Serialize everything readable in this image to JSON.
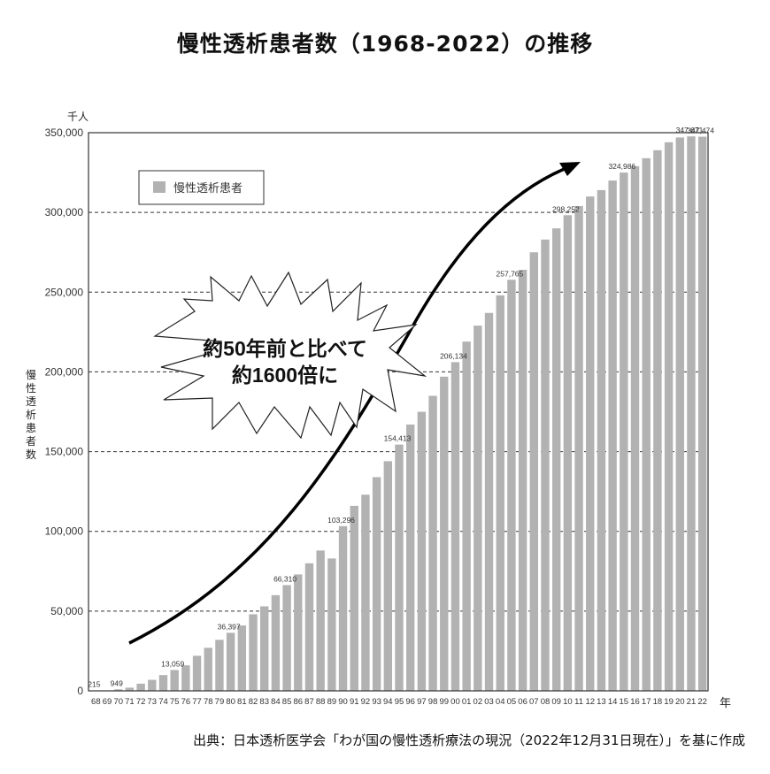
{
  "title": "慢性透析患者数（1968-2022）の推移",
  "y_unit": "千人",
  "y_axis_label": "慢性透析患者数",
  "x_unit": "年",
  "legend": {
    "label": "慢性透析患者"
  },
  "callout": {
    "line1": "約50年前と比べて",
    "line2": "約1600倍に"
  },
  "source": "出典：日本透析医学会「わが国の慢性透析療法の現況（2022年12月31日現在）」を基に作成",
  "colors": {
    "bar": "#b2b2b2",
    "axis": "#333333",
    "grid": "#333333",
    "arrow": "#000000"
  },
  "chart_data": {
    "type": "bar",
    "title": "慢性透析患者数（1968-2022）の推移",
    "xlabel": "年",
    "ylabel": "慢性透析患者数",
    "y_unit": "千人",
    "ylim": [
      0,
      350000
    ],
    "yticks": [
      0,
      50000,
      100000,
      150000,
      200000,
      250000,
      300000,
      350000
    ],
    "ytick_labels": [
      "0",
      "50,000",
      "100,000",
      "150,000",
      "200,000",
      "250,000",
      "300,000",
      "350,000"
    ],
    "grid": "horizontal dashed",
    "legend_position": "upper left inside",
    "categories": [
      "68",
      "69",
      "70",
      "71",
      "72",
      "73",
      "74",
      "75",
      "76",
      "77",
      "78",
      "79",
      "80",
      "81",
      "82",
      "83",
      "84",
      "85",
      "86",
      "87",
      "88",
      "89",
      "90",
      "91",
      "92",
      "93",
      "94",
      "95",
      "96",
      "97",
      "98",
      "99",
      "00",
      "01",
      "02",
      "03",
      "04",
      "05",
      "06",
      "07",
      "08",
      "09",
      "10",
      "11",
      "12",
      "13",
      "14",
      "15",
      "16",
      "17",
      "18",
      "19",
      "20",
      "21",
      "22"
    ],
    "series": [
      {
        "name": "慢性透析患者",
        "values": [
          215,
          300,
          949,
          2000,
          4500,
          6900,
          9900,
          13059,
          16000,
          22000,
          27000,
          32000,
          36397,
          41000,
          48000,
          53000,
          60000,
          66310,
          73000,
          80000,
          88000,
          83000,
          103296,
          116000,
          123000,
          134000,
          144000,
          154413,
          167000,
          175000,
          185000,
          197000,
          206134,
          219000,
          229000,
          237000,
          248000,
          257765,
          264000,
          275000,
          283000,
          290000,
          298252,
          304000,
          310000,
          314000,
          320000,
          324986,
          329000,
          334000,
          339000,
          344000,
          347000,
          347671,
          347474
        ]
      }
    ],
    "data_labels": [
      {
        "category": "68",
        "text": "215"
      },
      {
        "category": "70",
        "text": "949"
      },
      {
        "category": "75",
        "text": "13,059"
      },
      {
        "category": "80",
        "text": "36,397"
      },
      {
        "category": "85",
        "text": "66,310"
      },
      {
        "category": "90",
        "text": "103,296"
      },
      {
        "category": "95",
        "text": "154,413"
      },
      {
        "category": "00",
        "text": "206,134"
      },
      {
        "category": "05",
        "text": "257,765"
      },
      {
        "category": "10",
        "text": "298,252"
      },
      {
        "category": "15",
        "text": "324,986"
      },
      {
        "category": "21",
        "text": "347,671"
      },
      {
        "category": "22",
        "text": "347,474"
      }
    ],
    "annotations": [
      "約50年前と比べて 約1600倍に"
    ]
  }
}
